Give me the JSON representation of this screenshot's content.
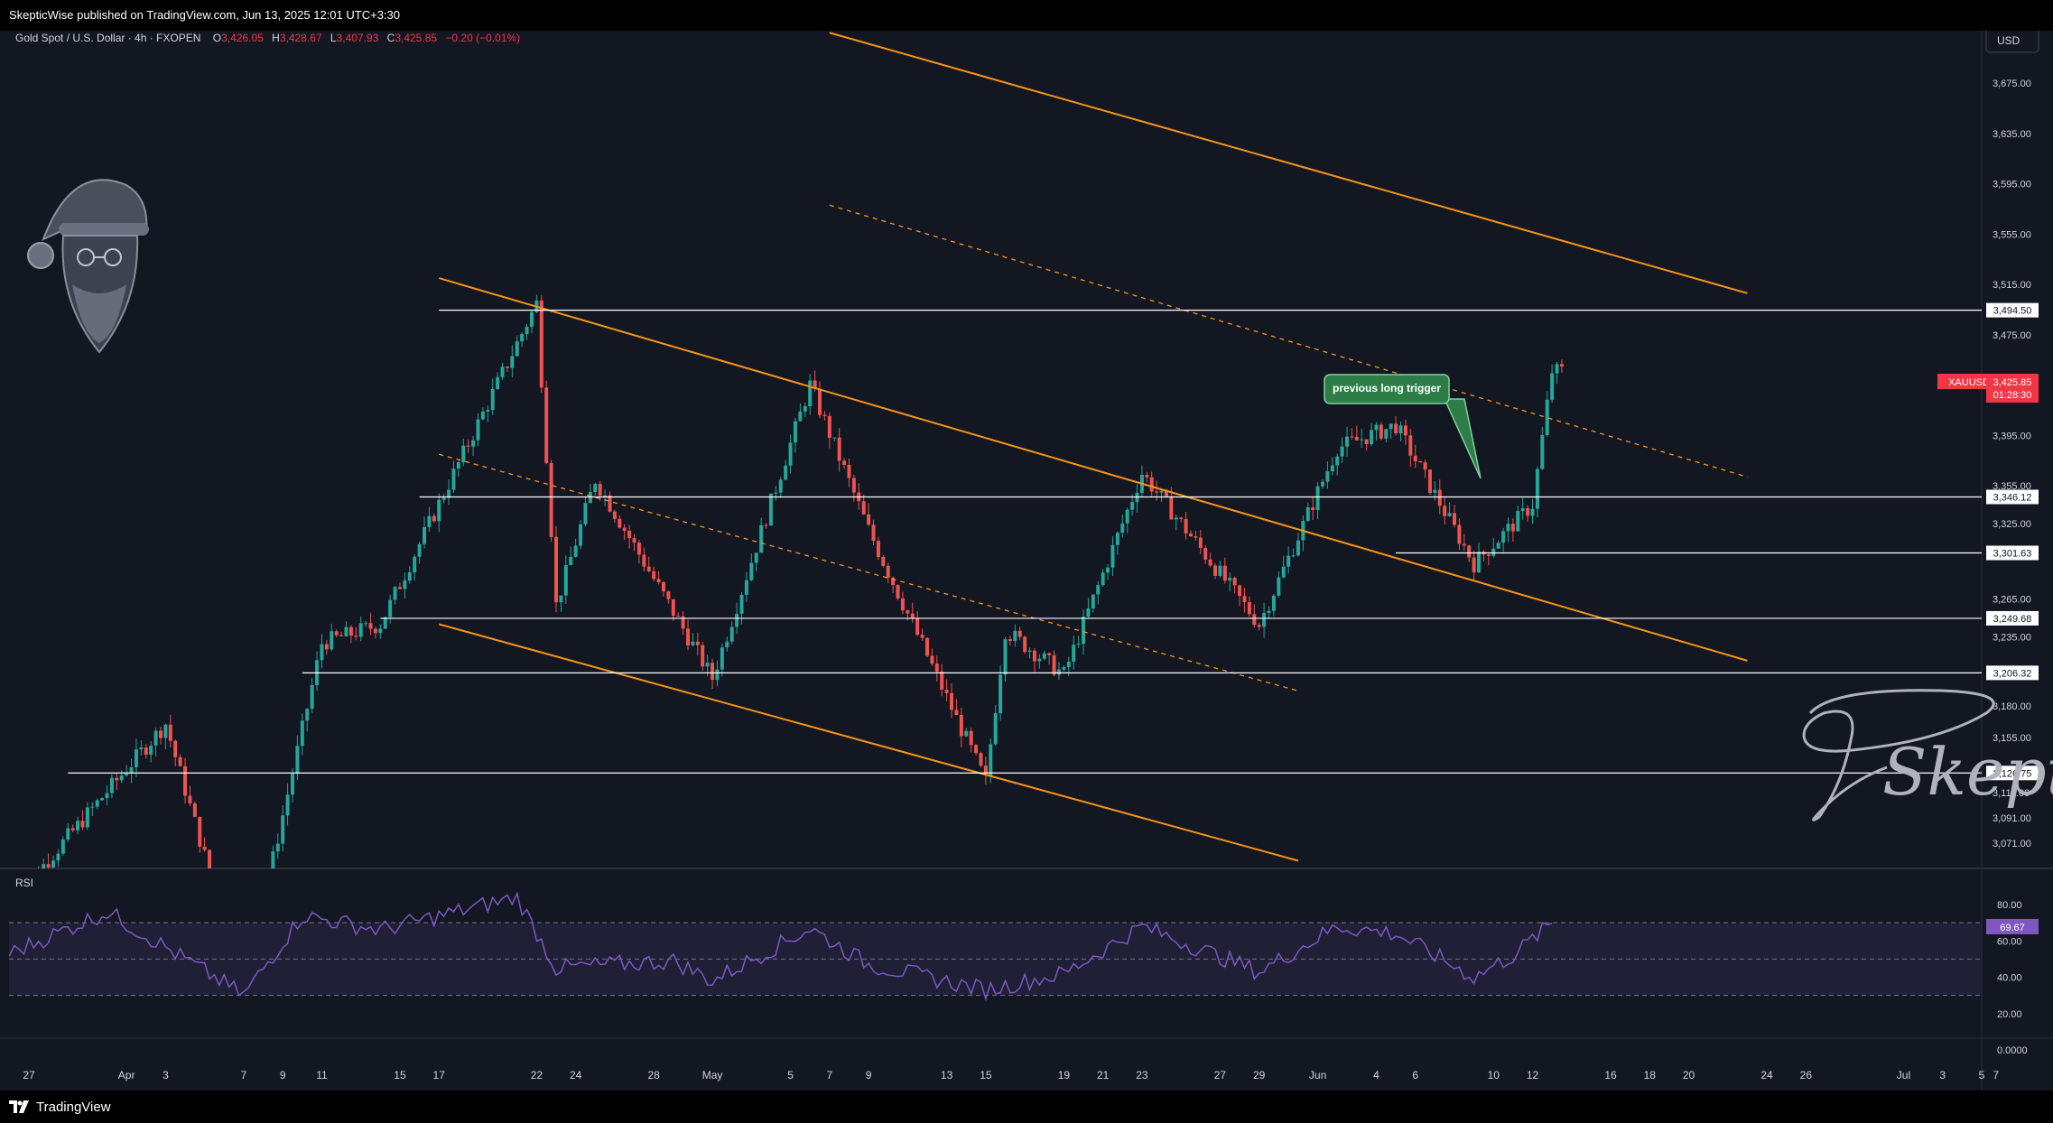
{
  "header": {
    "publisher": "SkepticWise published on TradingView.com, Jun 13, 2025 12:01 UTC+3:30"
  },
  "footer": {
    "brand": "TradingView",
    "logo_icon": "tradingview-logo-icon"
  },
  "instrument": {
    "title": "Gold Spot / U.S. Dollar · 4h · FXOPEN",
    "open_label": "O",
    "open": "3,426.05",
    "high_label": "H",
    "high": "3,428.67",
    "low_label": "L",
    "low": "3,407.93",
    "close_label": "C",
    "close": "3,425.85",
    "change": "−0.20 (−0.01%)",
    "symbol": "XAUUSD",
    "last_price": "3,425.85",
    "countdown": "01:28:30"
  },
  "currency": "USD",
  "annotation": "previous long trigger",
  "signature": "Skeptic",
  "colors": {
    "background": "#131722",
    "up": "#26a69a",
    "down": "#ef5350",
    "channel": "#f7931a",
    "level": "#ffffff",
    "rsi": "#7e57c2",
    "label_green": "#2e7d46",
    "price_tag": "#f23645"
  },
  "chart_data": [
    {
      "type": "candlestick",
      "title": "Gold Spot / U.S. Dollar · 4h · FXOPEN",
      "ylim": [
        3050,
        3710
      ],
      "y_ticks": [
        "3,675.00",
        "3,635.00",
        "3,595.00",
        "3,555.00",
        "3,515.00",
        "3,475.00",
        "3,435.00",
        "3,395.00",
        "3,355.00",
        "3,325.00",
        "3,265.00",
        "3,235.00",
        "3,180.00",
        "3,155.00",
        "3,111.00",
        "3,091.00",
        "3,071.00"
      ],
      "x_ticks": [
        "27",
        "Apr",
        "3",
        "7",
        "9",
        "11",
        "15",
        "17",
        "22",
        "24",
        "28",
        "May",
        "5",
        "7",
        "9",
        "13",
        "15",
        "19",
        "21",
        "23",
        "27",
        "29",
        "Jun",
        "4",
        "6",
        "10",
        "12",
        "16",
        "18",
        "20",
        "24",
        "26",
        "Jul",
        "3",
        "7",
        "5"
      ],
      "key_points": [
        {
          "date": "2025-03-26",
          "price": 3022
        },
        {
          "date": "2025-04-03",
          "price": 3166
        },
        {
          "date": "2025-04-07",
          "price": 2956
        },
        {
          "date": "2025-04-11",
          "price": 3230
        },
        {
          "date": "2025-04-14",
          "price": 3245
        },
        {
          "date": "2025-04-22",
          "price": 3500
        },
        {
          "date": "2025-04-23",
          "price": 3260
        },
        {
          "date": "2025-04-25",
          "price": 3360
        },
        {
          "date": "2025-05-01",
          "price": 3202
        },
        {
          "date": "2025-05-06",
          "price": 3435
        },
        {
          "date": "2025-05-09",
          "price": 3320
        },
        {
          "date": "2025-05-15",
          "price": 3120
        },
        {
          "date": "2025-05-16",
          "price": 3240
        },
        {
          "date": "2025-05-19",
          "price": 3205
        },
        {
          "date": "2025-05-23",
          "price": 3365
        },
        {
          "date": "2025-05-29",
          "price": 3245
        },
        {
          "date": "2025-06-02",
          "price": 3385
        },
        {
          "date": "2025-06-05",
          "price": 3403
        },
        {
          "date": "2025-06-09",
          "price": 3293
        },
        {
          "date": "2025-06-12",
          "price": 3340
        },
        {
          "date": "2025-06-13",
          "price": 3446
        }
      ],
      "levels": [
        {
          "label": "3,494.50",
          "price": 3494.5
        },
        {
          "label": "3,346.12",
          "price": 3346.12
        },
        {
          "label": "3,301.63",
          "price": 3301.63
        },
        {
          "label": "3,249.68",
          "price": 3249.68
        },
        {
          "label": "3,206.32",
          "price": 3206.32
        },
        {
          "label": "3,126.75",
          "price": 3126.75
        }
      ],
      "channel_lines": [
        {
          "style": "solid",
          "from": {
            "date": "2025-04-17",
            "price": 3520
          },
          "to": {
            "date": "2025-06-23",
            "price": 3216
          }
        },
        {
          "style": "dashed",
          "from": {
            "date": "2025-04-17",
            "price": 3380
          },
          "to": {
            "date": "2025-05-31",
            "price": 3192
          }
        },
        {
          "style": "solid",
          "from": {
            "date": "2025-04-17",
            "price": 3245
          },
          "to": {
            "date": "2025-05-31",
            "price": 3057
          }
        },
        {
          "style": "solid",
          "from": {
            "date": "2025-05-07",
            "price": 3715
          },
          "to": {
            "date": "2025-06-23",
            "price": 3508
          }
        },
        {
          "style": "dashed",
          "from": {
            "date": "2025-05-07",
            "price": 3578
          },
          "to": {
            "date": "2025-06-23",
            "price": 3362
          }
        }
      ]
    },
    {
      "type": "line",
      "title": "RSI",
      "ylim": [
        0,
        100
      ],
      "y_ticks": [
        "80.00",
        "60.00",
        "40.00",
        "20.00",
        "0.0000"
      ],
      "bands": [
        70,
        50,
        30
      ],
      "last_value": "69.67",
      "key_points": [
        {
          "date": "2025-03-26",
          "value": 53
        },
        {
          "date": "2025-03-31",
          "value": 76
        },
        {
          "date": "2025-04-02",
          "value": 63
        },
        {
          "date": "2025-04-07",
          "value": 30
        },
        {
          "date": "2025-04-10",
          "value": 74
        },
        {
          "date": "2025-04-14",
          "value": 66
        },
        {
          "date": "2025-04-21",
          "value": 84
        },
        {
          "date": "2025-04-23",
          "value": 45
        },
        {
          "date": "2025-04-29",
          "value": 49
        },
        {
          "date": "2025-05-01",
          "value": 38
        },
        {
          "date": "2025-05-06",
          "value": 67
        },
        {
          "date": "2025-05-09",
          "value": 47
        },
        {
          "date": "2025-05-15",
          "value": 33
        },
        {
          "date": "2025-05-19",
          "value": 42
        },
        {
          "date": "2025-05-23",
          "value": 68
        },
        {
          "date": "2025-05-29",
          "value": 43
        },
        {
          "date": "2025-06-02",
          "value": 68
        },
        {
          "date": "2025-06-05",
          "value": 64
        },
        {
          "date": "2025-06-09",
          "value": 40
        },
        {
          "date": "2025-06-11",
          "value": 52
        },
        {
          "date": "2025-06-13",
          "value": 69.67
        }
      ]
    }
  ]
}
